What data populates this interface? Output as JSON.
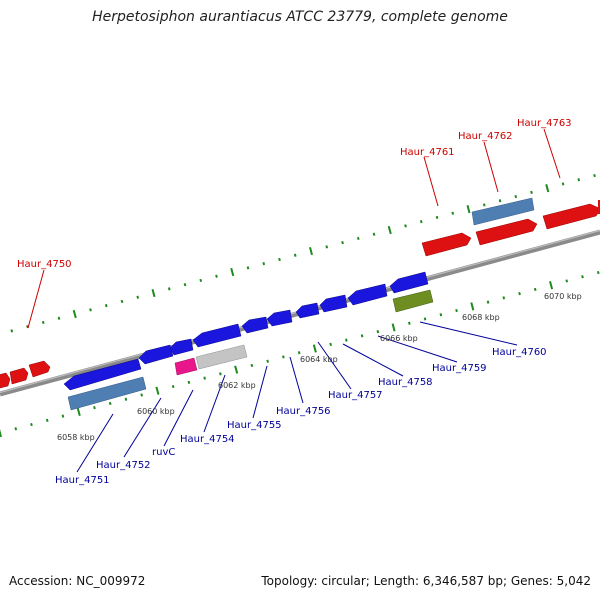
{
  "title": "Herpetosiphon aurantiacus ATCC 23779, complete genome",
  "accession": "Accession: NC_009972",
  "summary": "Topology: circular; Length: 6,346,587 bp; Genes: 5,042",
  "colors": {
    "forward_cds": "#dd1111",
    "reverse_cds": "#1a16dd",
    "gene_bar": "#4f7fb2",
    "trna": "#e8168a",
    "pseudo": "#c4c4c4",
    "misc": "#6e8e22",
    "backbone": "#888888",
    "tick": "#1f8a1f",
    "forward_label": "#cc0000",
    "reverse_label": "#000099"
  },
  "kbp_labels": [
    "6058 kbp",
    "6060 kbp",
    "6062 kbp",
    "6064 kbp",
    "6066 kbp",
    "6068 kbp",
    "6070 kbp"
  ],
  "forward_genes": [
    "Haur_4750",
    "Haur_4761",
    "Haur_4762",
    "Haur_4763"
  ],
  "reverse_genes": [
    "Haur_4751",
    "Haur_4752",
    "ruvC",
    "Haur_4754",
    "Haur_4755",
    "Haur_4756",
    "Haur_4757",
    "Haur_4758",
    "Haur_4759",
    "Haur_4760"
  ]
}
